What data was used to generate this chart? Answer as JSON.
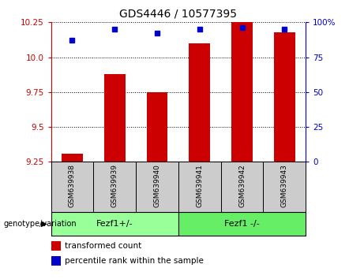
{
  "title": "GDS4446 / 10577395",
  "samples": [
    "GSM639938",
    "GSM639939",
    "GSM639940",
    "GSM639941",
    "GSM639942",
    "GSM639943"
  ],
  "transformed_counts": [
    9.31,
    9.88,
    9.75,
    10.1,
    10.25,
    10.18
  ],
  "percentile_ranks": [
    87,
    95,
    92,
    95,
    96,
    95
  ],
  "y_min": 9.25,
  "y_max": 10.25,
  "y_ticks": [
    9.25,
    9.5,
    9.75,
    10.0,
    10.25
  ],
  "y2_ticks": [
    0,
    25,
    50,
    75,
    100
  ],
  "y2_tick_labels": [
    "0",
    "25",
    "50",
    "75",
    "100%"
  ],
  "bar_color": "#cc0000",
  "dot_color": "#0000cc",
  "bar_width": 0.5,
  "groups": [
    {
      "label": "Fezf1+/-",
      "indices": [
        0,
        1,
        2
      ],
      "color": "#99ff99"
    },
    {
      "label": "Fezf1 -/-",
      "indices": [
        3,
        4,
        5
      ],
      "color": "#66ee66"
    }
  ],
  "group_label": "genotype/variation",
  "legend_items": [
    {
      "label": "transformed count",
      "color": "#cc0000"
    },
    {
      "label": "percentile rank within the sample",
      "color": "#0000cc"
    }
  ],
  "axis_color_left": "#cc0000",
  "axis_color_right": "#0000cc",
  "sample_box_color": "#cccccc",
  "fig_width": 4.61,
  "fig_height": 3.54,
  "fig_dpi": 100
}
